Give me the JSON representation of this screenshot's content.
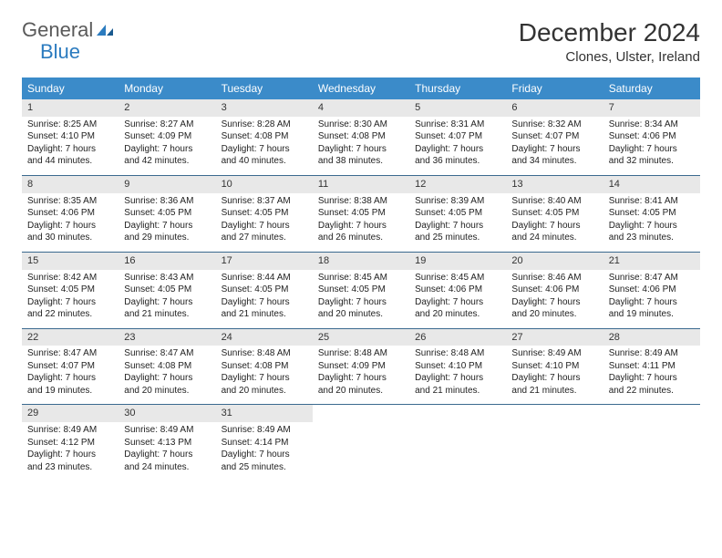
{
  "logo": {
    "word1": "General",
    "word2": "Blue"
  },
  "title": "December 2024",
  "location": "Clones, Ulster, Ireland",
  "headers": [
    "Sunday",
    "Monday",
    "Tuesday",
    "Wednesday",
    "Thursday",
    "Friday",
    "Saturday"
  ],
  "colors": {
    "header_bg": "#3b8bc9",
    "header_fg": "#ffffff",
    "daynum_bg": "#e8e8e8",
    "border": "#3b6a8f",
    "logo_gray": "#5a5a5a",
    "logo_blue": "#2b7bbf"
  },
  "weeks": [
    [
      {
        "n": "1",
        "sr": "Sunrise: 8:25 AM",
        "ss": "Sunset: 4:10 PM",
        "d1": "Daylight: 7 hours",
        "d2": "and 44 minutes."
      },
      {
        "n": "2",
        "sr": "Sunrise: 8:27 AM",
        "ss": "Sunset: 4:09 PM",
        "d1": "Daylight: 7 hours",
        "d2": "and 42 minutes."
      },
      {
        "n": "3",
        "sr": "Sunrise: 8:28 AM",
        "ss": "Sunset: 4:08 PM",
        "d1": "Daylight: 7 hours",
        "d2": "and 40 minutes."
      },
      {
        "n": "4",
        "sr": "Sunrise: 8:30 AM",
        "ss": "Sunset: 4:08 PM",
        "d1": "Daylight: 7 hours",
        "d2": "and 38 minutes."
      },
      {
        "n": "5",
        "sr": "Sunrise: 8:31 AM",
        "ss": "Sunset: 4:07 PM",
        "d1": "Daylight: 7 hours",
        "d2": "and 36 minutes."
      },
      {
        "n": "6",
        "sr": "Sunrise: 8:32 AM",
        "ss": "Sunset: 4:07 PM",
        "d1": "Daylight: 7 hours",
        "d2": "and 34 minutes."
      },
      {
        "n": "7",
        "sr": "Sunrise: 8:34 AM",
        "ss": "Sunset: 4:06 PM",
        "d1": "Daylight: 7 hours",
        "d2": "and 32 minutes."
      }
    ],
    [
      {
        "n": "8",
        "sr": "Sunrise: 8:35 AM",
        "ss": "Sunset: 4:06 PM",
        "d1": "Daylight: 7 hours",
        "d2": "and 30 minutes."
      },
      {
        "n": "9",
        "sr": "Sunrise: 8:36 AM",
        "ss": "Sunset: 4:05 PM",
        "d1": "Daylight: 7 hours",
        "d2": "and 29 minutes."
      },
      {
        "n": "10",
        "sr": "Sunrise: 8:37 AM",
        "ss": "Sunset: 4:05 PM",
        "d1": "Daylight: 7 hours",
        "d2": "and 27 minutes."
      },
      {
        "n": "11",
        "sr": "Sunrise: 8:38 AM",
        "ss": "Sunset: 4:05 PM",
        "d1": "Daylight: 7 hours",
        "d2": "and 26 minutes."
      },
      {
        "n": "12",
        "sr": "Sunrise: 8:39 AM",
        "ss": "Sunset: 4:05 PM",
        "d1": "Daylight: 7 hours",
        "d2": "and 25 minutes."
      },
      {
        "n": "13",
        "sr": "Sunrise: 8:40 AM",
        "ss": "Sunset: 4:05 PM",
        "d1": "Daylight: 7 hours",
        "d2": "and 24 minutes."
      },
      {
        "n": "14",
        "sr": "Sunrise: 8:41 AM",
        "ss": "Sunset: 4:05 PM",
        "d1": "Daylight: 7 hours",
        "d2": "and 23 minutes."
      }
    ],
    [
      {
        "n": "15",
        "sr": "Sunrise: 8:42 AM",
        "ss": "Sunset: 4:05 PM",
        "d1": "Daylight: 7 hours",
        "d2": "and 22 minutes."
      },
      {
        "n": "16",
        "sr": "Sunrise: 8:43 AM",
        "ss": "Sunset: 4:05 PM",
        "d1": "Daylight: 7 hours",
        "d2": "and 21 minutes."
      },
      {
        "n": "17",
        "sr": "Sunrise: 8:44 AM",
        "ss": "Sunset: 4:05 PM",
        "d1": "Daylight: 7 hours",
        "d2": "and 21 minutes."
      },
      {
        "n": "18",
        "sr": "Sunrise: 8:45 AM",
        "ss": "Sunset: 4:05 PM",
        "d1": "Daylight: 7 hours",
        "d2": "and 20 minutes."
      },
      {
        "n": "19",
        "sr": "Sunrise: 8:45 AM",
        "ss": "Sunset: 4:06 PM",
        "d1": "Daylight: 7 hours",
        "d2": "and 20 minutes."
      },
      {
        "n": "20",
        "sr": "Sunrise: 8:46 AM",
        "ss": "Sunset: 4:06 PM",
        "d1": "Daylight: 7 hours",
        "d2": "and 20 minutes."
      },
      {
        "n": "21",
        "sr": "Sunrise: 8:47 AM",
        "ss": "Sunset: 4:06 PM",
        "d1": "Daylight: 7 hours",
        "d2": "and 19 minutes."
      }
    ],
    [
      {
        "n": "22",
        "sr": "Sunrise: 8:47 AM",
        "ss": "Sunset: 4:07 PM",
        "d1": "Daylight: 7 hours",
        "d2": "and 19 minutes."
      },
      {
        "n": "23",
        "sr": "Sunrise: 8:47 AM",
        "ss": "Sunset: 4:08 PM",
        "d1": "Daylight: 7 hours",
        "d2": "and 20 minutes."
      },
      {
        "n": "24",
        "sr": "Sunrise: 8:48 AM",
        "ss": "Sunset: 4:08 PM",
        "d1": "Daylight: 7 hours",
        "d2": "and 20 minutes."
      },
      {
        "n": "25",
        "sr": "Sunrise: 8:48 AM",
        "ss": "Sunset: 4:09 PM",
        "d1": "Daylight: 7 hours",
        "d2": "and 20 minutes."
      },
      {
        "n": "26",
        "sr": "Sunrise: 8:48 AM",
        "ss": "Sunset: 4:10 PM",
        "d1": "Daylight: 7 hours",
        "d2": "and 21 minutes."
      },
      {
        "n": "27",
        "sr": "Sunrise: 8:49 AM",
        "ss": "Sunset: 4:10 PM",
        "d1": "Daylight: 7 hours",
        "d2": "and 21 minutes."
      },
      {
        "n": "28",
        "sr": "Sunrise: 8:49 AM",
        "ss": "Sunset: 4:11 PM",
        "d1": "Daylight: 7 hours",
        "d2": "and 22 minutes."
      }
    ],
    [
      {
        "n": "29",
        "sr": "Sunrise: 8:49 AM",
        "ss": "Sunset: 4:12 PM",
        "d1": "Daylight: 7 hours",
        "d2": "and 23 minutes."
      },
      {
        "n": "30",
        "sr": "Sunrise: 8:49 AM",
        "ss": "Sunset: 4:13 PM",
        "d1": "Daylight: 7 hours",
        "d2": "and 24 minutes."
      },
      {
        "n": "31",
        "sr": "Sunrise: 8:49 AM",
        "ss": "Sunset: 4:14 PM",
        "d1": "Daylight: 7 hours",
        "d2": "and 25 minutes."
      },
      {
        "empty": true
      },
      {
        "empty": true
      },
      {
        "empty": true
      },
      {
        "empty": true
      }
    ]
  ]
}
